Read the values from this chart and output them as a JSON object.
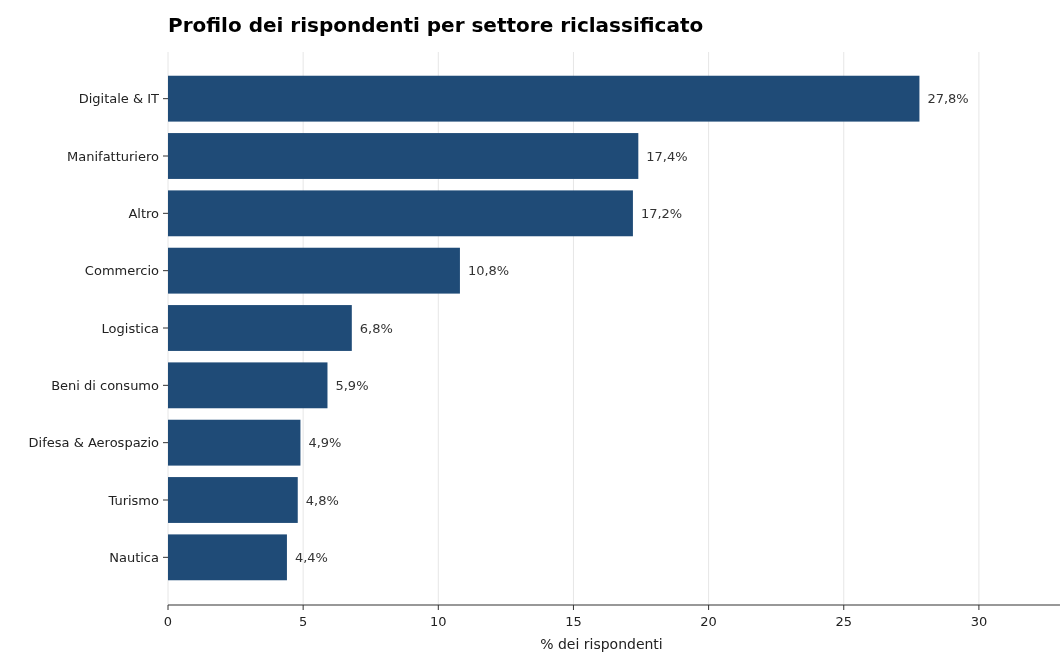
{
  "chart_data": {
    "type": "bar",
    "orientation": "horizontal",
    "title": "Profilo dei rispondenti per settore riclassificato",
    "xlabel": "% dei rispondenti",
    "categories": [
      "Digitale & IT",
      "Manifatturiero",
      "Altro",
      "Commercio",
      "Logistica",
      "Beni di consumo",
      "Difesa & Aerospazio",
      "Turismo",
      "Nautica"
    ],
    "values": [
      27.8,
      17.4,
      17.2,
      10.8,
      6.8,
      5.9,
      4.9,
      4.8,
      4.4
    ],
    "value_labels": [
      "27,8%",
      "17,4%",
      "17,2%",
      "10,8%",
      "6,8%",
      "5,9%",
      "4,9%",
      "4,8%",
      "4,4%"
    ],
    "color": "#1f4b77",
    "xlim": [
      0,
      33
    ],
    "xticks": [
      0,
      5,
      10,
      15,
      20,
      25,
      30
    ],
    "grid": "x"
  }
}
